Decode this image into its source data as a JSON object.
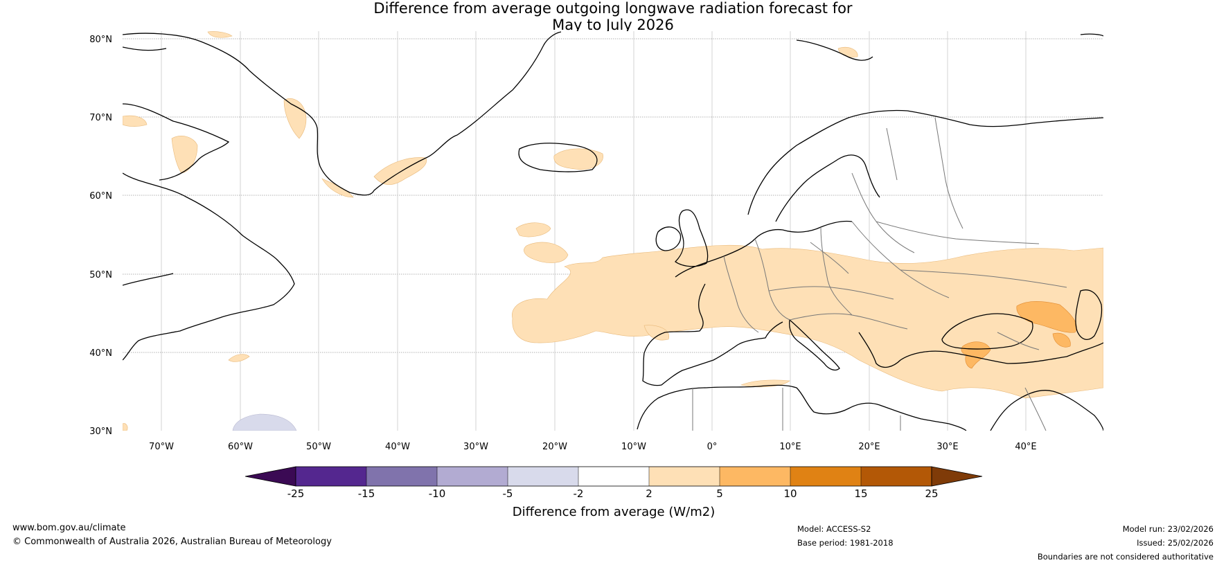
{
  "title": {
    "line1": "Difference from average outgoing longwave radiation forecast for",
    "line2": "May to July 2026"
  },
  "map": {
    "lat_labels": [
      "80°N",
      "70°N",
      "60°N",
      "50°N",
      "40°N",
      "30°N"
    ],
    "lon_labels": [
      "70°W",
      "60°W",
      "50°W",
      "40°W",
      "30°W",
      "20°W",
      "10°W",
      "0°",
      "10°E",
      "20°E",
      "30°E",
      "40°E"
    ]
  },
  "legend": {
    "title": "Difference from average (W/m2)",
    "tick_labels": [
      "-25",
      "-15",
      "-10",
      "-5",
      "-2",
      "2",
      "5",
      "10",
      "15",
      "25"
    ],
    "colors": [
      "#3b0a54",
      "#54278f",
      "#8073ac",
      "#b2abd2",
      "#d8daeb",
      "#ffffff",
      "#fee0b6",
      "#fdb863",
      "#e08214",
      "#b35806",
      "#7f3b08"
    ]
  },
  "footer": {
    "website": "www.bom.gov.au/climate",
    "copyright": "© Commonwealth of Australia 2026, Australian Bureau of Meteorology",
    "model": "Model: ACCESS-S2",
    "base_period": "Base period: 1981-2018",
    "model_run": "Model run: 23/02/2026",
    "issued": "Issued: 25/02/2026",
    "boundaries_note": "Boundaries are not considered authoritative"
  }
}
